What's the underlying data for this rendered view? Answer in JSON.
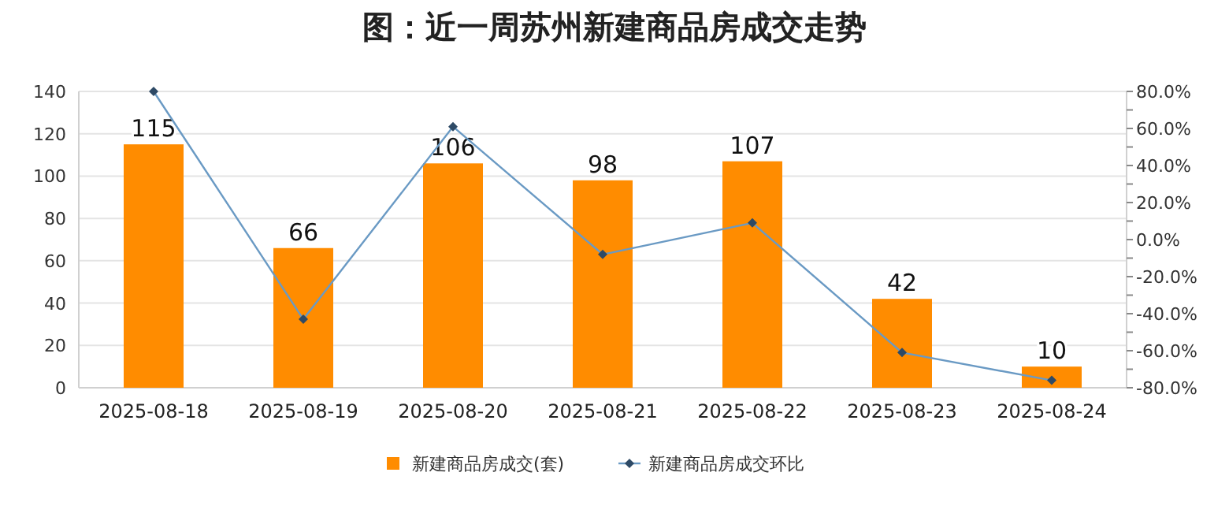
{
  "chart_data": {
    "type": "bar",
    "title": "图：近一周苏州新建商品房成交走势",
    "categories": [
      "2025-08-18",
      "2025-08-19",
      "2025-08-20",
      "2025-08-21",
      "2025-08-22",
      "2025-08-23",
      "2025-08-24"
    ],
    "series": [
      {
        "name": "新建商品房成交(套)",
        "color": "#ff8c00",
        "values": [
          115,
          66,
          106,
          98,
          107,
          42,
          10
        ],
        "value_labels": [
          "115",
          "66",
          "106",
          "98",
          "107",
          "42",
          "10"
        ]
      },
      {
        "name": "新建商品房成交环比",
        "type": "line",
        "axis": "y2",
        "color": "#6a9ac4",
        "marker": "diamond",
        "values": [
          80,
          -43,
          61,
          -8,
          9,
          -61,
          -76
        ]
      }
    ],
    "ylim": [
      0,
      140
    ],
    "yticks": [
      0,
      20,
      40,
      60,
      80,
      100,
      120,
      140
    ],
    "y2lim": [
      -80,
      80
    ],
    "y2ticks": [
      {
        "value": -80,
        "label": "-80.0%"
      },
      {
        "value": -70,
        "label": null
      },
      {
        "value": -60,
        "label": "-60.0%"
      },
      {
        "value": -50,
        "label": null
      },
      {
        "value": -40,
        "label": "-40.0%"
      },
      {
        "value": -30,
        "label": null
      },
      {
        "value": -20,
        "label": "-20.0%"
      },
      {
        "value": -10,
        "label": null
      },
      {
        "value": 0,
        "label": "0.0%"
      },
      {
        "value": 10,
        "label": null
      },
      {
        "value": 20,
        "label": "20.0%"
      },
      {
        "value": 30,
        "label": null
      },
      {
        "value": 40,
        "label": "40.0%"
      },
      {
        "value": 50,
        "label": null
      },
      {
        "value": 60,
        "label": "60.0%"
      },
      {
        "value": 70,
        "label": null
      },
      {
        "value": 80,
        "label": "80.0%"
      }
    ],
    "grid": "y",
    "legend": "bottom"
  }
}
